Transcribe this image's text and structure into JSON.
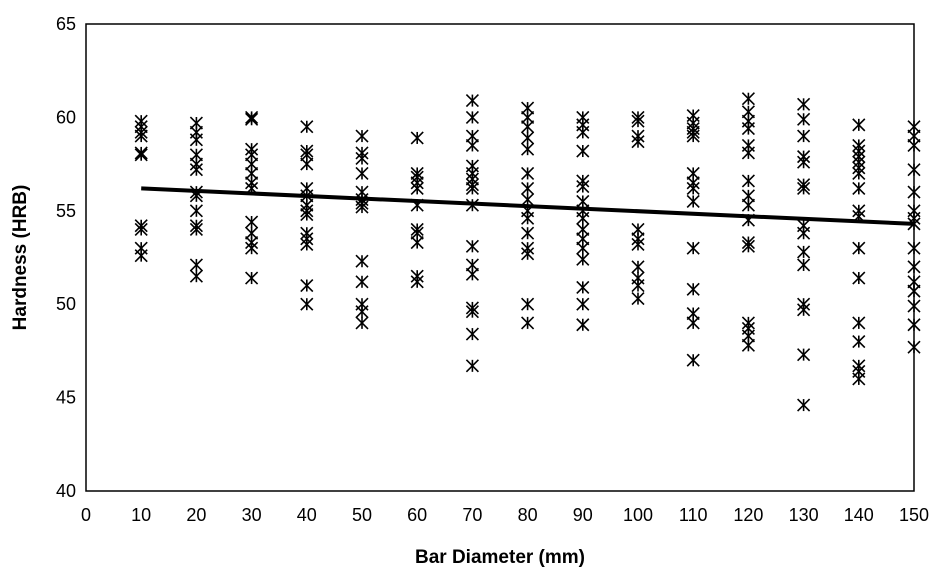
{
  "chart_data": {
    "type": "scatter",
    "title": "",
    "xlabel": "Bar Diameter (mm)",
    "ylabel": "Hardness (HRB)",
    "xlim": [
      0,
      150
    ],
    "ylim": [
      40,
      65
    ],
    "x_ticks": [
      0,
      10,
      20,
      30,
      40,
      50,
      60,
      70,
      80,
      90,
      100,
      110,
      120,
      130,
      140,
      150
    ],
    "y_ticks": [
      40,
      45,
      50,
      55,
      60,
      65
    ],
    "grid": false,
    "legend": "none",
    "marker": "asterisk",
    "marker_color": "#000000",
    "trendline": {
      "type": "linear",
      "x": [
        10,
        150
      ],
      "y": [
        56.2,
        54.3
      ],
      "color": "#000000"
    },
    "series": [
      {
        "points": [
          [
            10,
            59.8
          ],
          [
            10,
            59.5
          ],
          [
            10,
            59.2
          ],
          [
            10,
            59.0
          ],
          [
            10,
            58.1
          ],
          [
            10,
            58.0
          ],
          [
            10,
            54.2
          ],
          [
            10,
            54.0
          ],
          [
            10,
            53.0
          ],
          [
            10,
            52.6
          ],
          [
            20,
            59.7
          ],
          [
            20,
            59.2
          ],
          [
            20,
            58.8
          ],
          [
            20,
            58.0
          ],
          [
            20,
            57.5
          ],
          [
            20,
            57.2
          ],
          [
            20,
            56.0
          ],
          [
            20,
            55.8
          ],
          [
            20,
            55.0
          ],
          [
            20,
            54.2
          ],
          [
            20,
            54.0
          ],
          [
            20,
            52.1
          ],
          [
            20,
            51.5
          ],
          [
            30,
            60.0
          ],
          [
            30,
            59.9
          ],
          [
            30,
            58.3
          ],
          [
            30,
            58.0
          ],
          [
            30,
            57.5
          ],
          [
            30,
            57.0
          ],
          [
            30,
            56.5
          ],
          [
            30,
            56.2
          ],
          [
            30,
            54.4
          ],
          [
            30,
            53.8
          ],
          [
            30,
            53.3
          ],
          [
            30,
            53.0
          ],
          [
            30,
            51.4
          ],
          [
            40,
            59.5
          ],
          [
            40,
            58.2
          ],
          [
            40,
            58.0
          ],
          [
            40,
            57.5
          ],
          [
            40,
            56.2
          ],
          [
            40,
            55.8
          ],
          [
            40,
            55.3
          ],
          [
            40,
            55.0
          ],
          [
            40,
            54.8
          ],
          [
            40,
            53.8
          ],
          [
            40,
            53.5
          ],
          [
            40,
            53.2
          ],
          [
            40,
            51.0
          ],
          [
            40,
            50.0
          ],
          [
            50,
            59.0
          ],
          [
            50,
            58.1
          ],
          [
            50,
            57.8
          ],
          [
            50,
            57.0
          ],
          [
            50,
            56.0
          ],
          [
            50,
            55.6
          ],
          [
            50,
            55.4
          ],
          [
            50,
            55.2
          ],
          [
            50,
            52.3
          ],
          [
            50,
            51.2
          ],
          [
            50,
            50.0
          ],
          [
            50,
            49.6
          ],
          [
            50,
            49.0
          ],
          [
            60,
            58.9
          ],
          [
            60,
            57.0
          ],
          [
            60,
            56.8
          ],
          [
            60,
            56.5
          ],
          [
            60,
            56.2
          ],
          [
            60,
            55.3
          ],
          [
            60,
            54.0
          ],
          [
            60,
            53.8
          ],
          [
            60,
            53.3
          ],
          [
            60,
            51.5
          ],
          [
            60,
            51.2
          ],
          [
            70,
            60.9
          ],
          [
            70,
            60.0
          ],
          [
            70,
            59.0
          ],
          [
            70,
            58.5
          ],
          [
            70,
            57.4
          ],
          [
            70,
            57.0
          ],
          [
            70,
            56.7
          ],
          [
            70,
            56.4
          ],
          [
            70,
            56.2
          ],
          [
            70,
            55.3
          ],
          [
            70,
            53.1
          ],
          [
            70,
            52.1
          ],
          [
            70,
            51.6
          ],
          [
            70,
            49.8
          ],
          [
            70,
            49.6
          ],
          [
            70,
            48.4
          ],
          [
            70,
            46.7
          ],
          [
            80,
            60.5
          ],
          [
            80,
            60.0
          ],
          [
            80,
            59.5
          ],
          [
            80,
            58.9
          ],
          [
            80,
            58.3
          ],
          [
            80,
            57.0
          ],
          [
            80,
            56.2
          ],
          [
            80,
            55.6
          ],
          [
            80,
            55.0
          ],
          [
            80,
            54.6
          ],
          [
            80,
            53.8
          ],
          [
            80,
            53.0
          ],
          [
            80,
            52.7
          ],
          [
            80,
            50.0
          ],
          [
            80,
            49.0
          ],
          [
            90,
            60.0
          ],
          [
            90,
            59.6
          ],
          [
            90,
            59.2
          ],
          [
            90,
            58.2
          ],
          [
            90,
            56.6
          ],
          [
            90,
            56.3
          ],
          [
            90,
            55.5
          ],
          [
            90,
            55.0
          ],
          [
            90,
            54.6
          ],
          [
            90,
            54.0
          ],
          [
            90,
            53.5
          ],
          [
            90,
            53.0
          ],
          [
            90,
            52.4
          ],
          [
            90,
            50.9
          ],
          [
            90,
            50.0
          ],
          [
            90,
            48.9
          ],
          [
            100,
            60.0
          ],
          [
            100,
            59.8
          ],
          [
            100,
            59.0
          ],
          [
            100,
            58.7
          ],
          [
            100,
            54.0
          ],
          [
            100,
            53.5
          ],
          [
            100,
            53.2
          ],
          [
            100,
            52.0
          ],
          [
            100,
            51.4
          ],
          [
            100,
            51.0
          ],
          [
            100,
            50.3
          ],
          [
            110,
            60.1
          ],
          [
            110,
            59.7
          ],
          [
            110,
            59.4
          ],
          [
            110,
            59.2
          ],
          [
            110,
            59.0
          ],
          [
            110,
            57.0
          ],
          [
            110,
            56.5
          ],
          [
            110,
            56.2
          ],
          [
            110,
            55.5
          ],
          [
            110,
            53.0
          ],
          [
            110,
            50.8
          ],
          [
            110,
            49.5
          ],
          [
            110,
            49.0
          ],
          [
            110,
            47.0
          ],
          [
            120,
            61.0
          ],
          [
            120,
            60.3
          ],
          [
            120,
            59.8
          ],
          [
            120,
            59.4
          ],
          [
            120,
            58.5
          ],
          [
            120,
            58.1
          ],
          [
            120,
            56.6
          ],
          [
            120,
            55.8
          ],
          [
            120,
            55.3
          ],
          [
            120,
            54.5
          ],
          [
            120,
            53.3
          ],
          [
            120,
            53.1
          ],
          [
            120,
            49.0
          ],
          [
            120,
            48.7
          ],
          [
            120,
            48.3
          ],
          [
            120,
            47.8
          ],
          [
            130,
            60.7
          ],
          [
            130,
            59.9
          ],
          [
            130,
            59.0
          ],
          [
            130,
            57.9
          ],
          [
            130,
            57.6
          ],
          [
            130,
            56.4
          ],
          [
            130,
            56.2
          ],
          [
            130,
            54.2
          ],
          [
            130,
            53.8
          ],
          [
            130,
            52.8
          ],
          [
            130,
            52.1
          ],
          [
            130,
            50.0
          ],
          [
            130,
            49.7
          ],
          [
            130,
            47.3
          ],
          [
            130,
            44.6
          ],
          [
            140,
            59.6
          ],
          [
            140,
            58.5
          ],
          [
            140,
            58.2
          ],
          [
            140,
            57.9
          ],
          [
            140,
            57.6
          ],
          [
            140,
            57.3
          ],
          [
            140,
            57.0
          ],
          [
            140,
            56.2
          ],
          [
            140,
            55.0
          ],
          [
            140,
            54.7
          ],
          [
            140,
            53.0
          ],
          [
            140,
            51.4
          ],
          [
            140,
            49.0
          ],
          [
            140,
            48.0
          ],
          [
            140,
            46.7
          ],
          [
            140,
            46.4
          ],
          [
            140,
            46.0
          ],
          [
            150,
            59.5
          ],
          [
            150,
            59.0
          ],
          [
            150,
            58.5
          ],
          [
            150,
            57.2
          ],
          [
            150,
            56.0
          ],
          [
            150,
            55.0
          ],
          [
            150,
            54.6
          ],
          [
            150,
            54.3
          ],
          [
            150,
            53.0
          ],
          [
            150,
            52.0
          ],
          [
            150,
            51.2
          ],
          [
            150,
            50.7
          ],
          [
            150,
            49.9
          ],
          [
            150,
            48.9
          ],
          [
            150,
            47.7
          ]
        ]
      }
    ]
  }
}
